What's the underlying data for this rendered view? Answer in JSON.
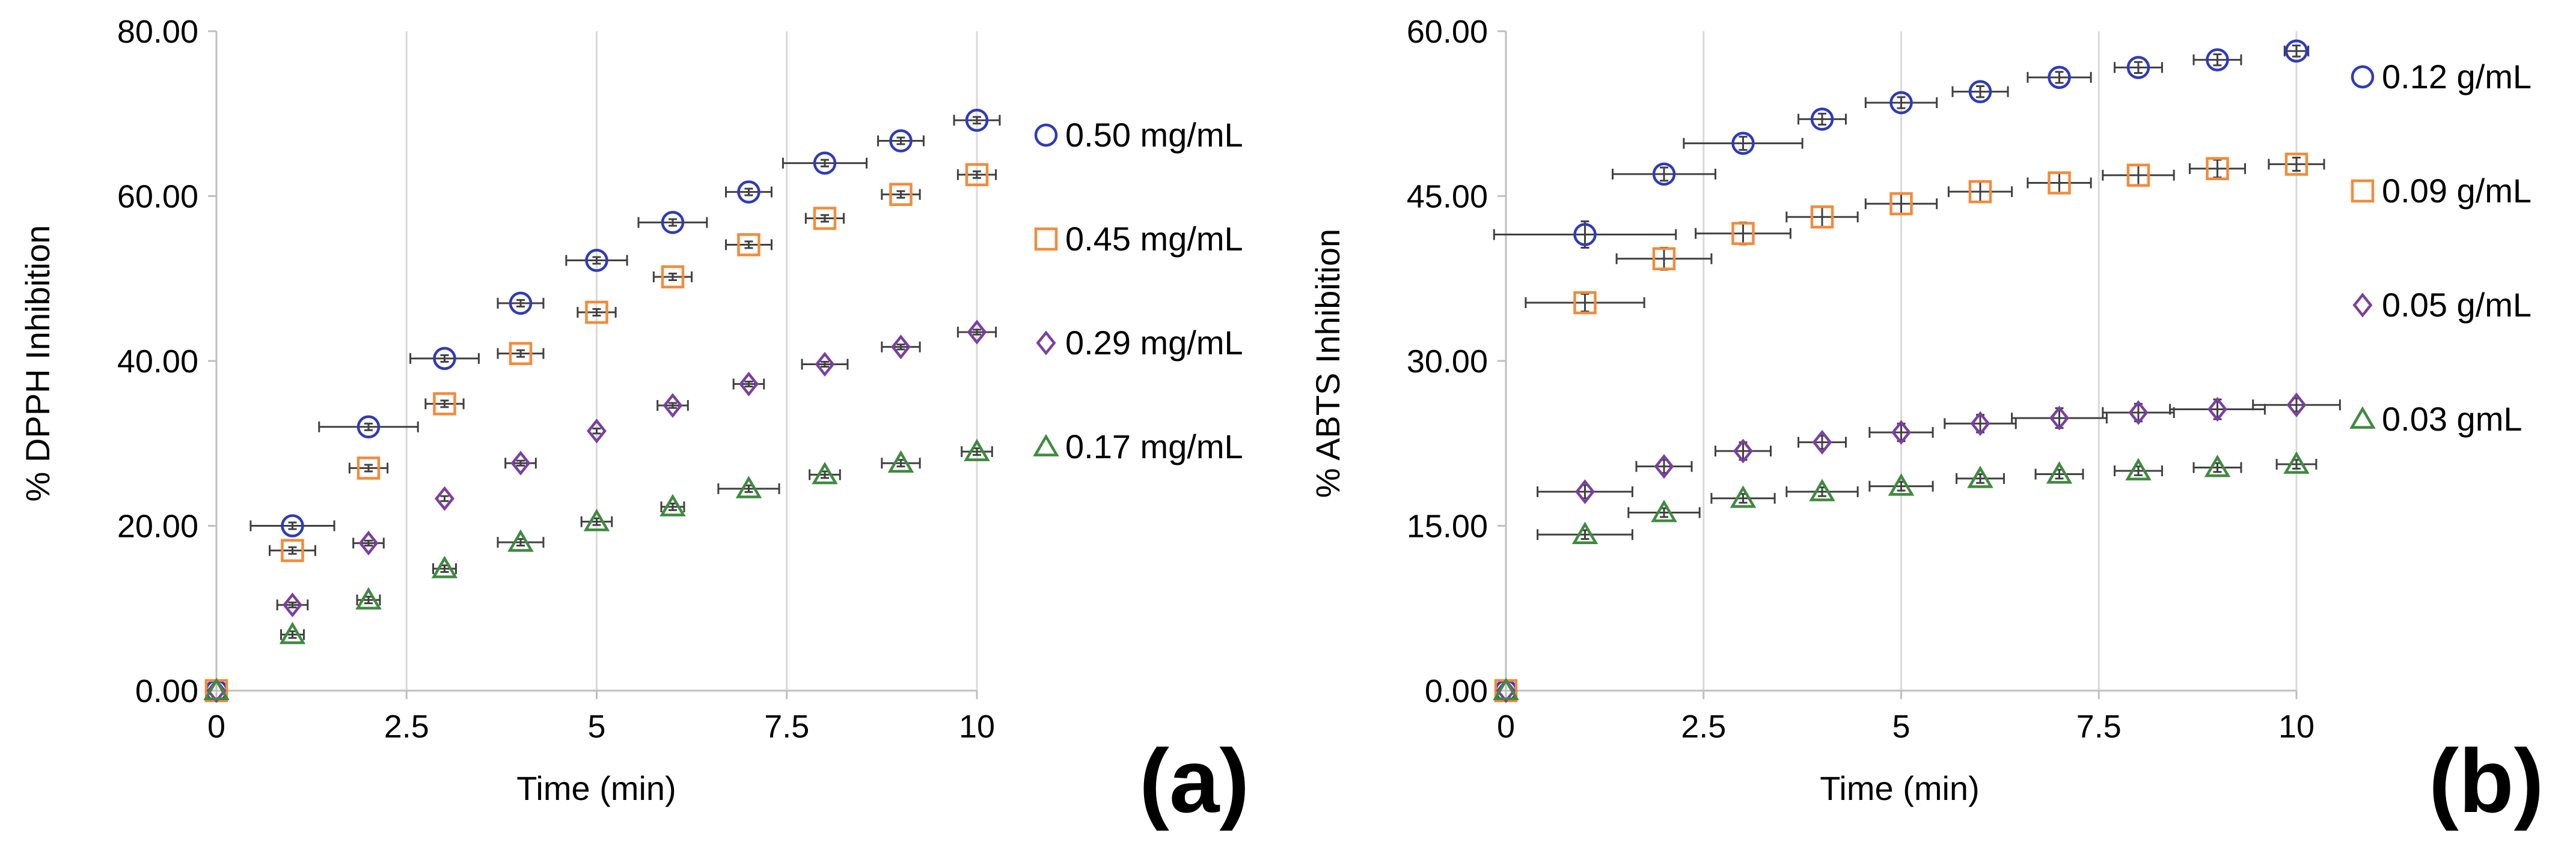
{
  "chart_data": [
    {
      "type": "scatter",
      "panel_label": "(a)",
      "xlabel": "Time (min)",
      "ylabel": "% DPPH Inhibition",
      "xlim": [
        0,
        10
      ],
      "ylim": [
        0,
        80
      ],
      "xticks": [
        0,
        2.5,
        5,
        7.5,
        10
      ],
      "xtick_labels": [
        "0",
        "2.5",
        "5",
        "7.5",
        "10"
      ],
      "yticks": [
        0,
        20,
        40,
        60,
        80
      ],
      "ytick_labels": [
        "0.00",
        "20.00",
        "40.00",
        "60.00",
        "80.00"
      ],
      "grid": "vertical",
      "legend_position": "right",
      "series": [
        {
          "name": "0.50 mg/mL",
          "marker": "circle",
          "color": "#2e3bb8",
          "x": [
            0,
            1,
            2,
            3,
            4,
            5,
            6,
            7,
            8,
            9,
            10
          ],
          "y": [
            0,
            20.0,
            32.0,
            40.3,
            47.0,
            52.2,
            56.8,
            60.5,
            64.0,
            66.7,
            69.2
          ],
          "xerr": [
            0,
            0.55,
            0.65,
            0.45,
            0.3,
            0.4,
            0.45,
            0.3,
            0.55,
            0.3,
            0.3
          ],
          "yerr": [
            0,
            0.4,
            0.4,
            0.4,
            0.4,
            0.4,
            0.4,
            0.4,
            0.4,
            0.4,
            0.4
          ]
        },
        {
          "name": "0.45 mg/mL",
          "marker": "square",
          "color": "#f28b3b",
          "x": [
            0,
            1,
            2,
            3,
            4,
            5,
            6,
            7,
            8,
            9,
            10
          ],
          "y": [
            0,
            17.0,
            27.0,
            34.8,
            40.9,
            45.9,
            50.2,
            54.1,
            57.3,
            60.2,
            62.6
          ],
          "xerr": [
            0,
            0.3,
            0.25,
            0.25,
            0.3,
            0.25,
            0.25,
            0.3,
            0.25,
            0.25,
            0.25
          ],
          "yerr": [
            0,
            0.4,
            0.4,
            0.4,
            0.4,
            0.4,
            0.4,
            0.4,
            0.4,
            0.4,
            0.4
          ]
        },
        {
          "name": "0.29 mg/mL",
          "marker": "diamond",
          "color": "#7b3fa0",
          "x": [
            0,
            1,
            2,
            3,
            4,
            5,
            6,
            7,
            8,
            9,
            10
          ],
          "y": [
            0,
            10.4,
            17.9,
            23.3,
            27.6,
            31.5,
            34.6,
            37.2,
            39.6,
            41.7,
            43.5
          ],
          "xerr": [
            0,
            0.2,
            0.2,
            0,
            0.2,
            0,
            0.2,
            0.2,
            0.3,
            0.25,
            0.25
          ],
          "yerr": [
            0,
            0.3,
            0.3,
            0.3,
            0.3,
            0.3,
            0.3,
            0.3,
            0.3,
            0.3,
            0.3
          ]
        },
        {
          "name": "0.17 mg/mL",
          "marker": "triangle",
          "color": "#3f8a3f",
          "x": [
            0,
            1,
            2,
            3,
            4,
            5,
            6,
            7,
            8,
            9,
            10
          ],
          "y": [
            0,
            6.8,
            11.0,
            14.8,
            18.0,
            20.5,
            22.3,
            24.5,
            26.2,
            27.6,
            29.0
          ],
          "xerr": [
            0,
            0.15,
            0.15,
            0.15,
            0.3,
            0.2,
            0.15,
            0.4,
            0.2,
            0.25,
            0.2
          ],
          "yerr": [
            0,
            0.4,
            0.4,
            0.4,
            0.4,
            0.4,
            0.4,
            0.4,
            0.4,
            0.4,
            0.4
          ]
        }
      ]
    },
    {
      "type": "scatter",
      "panel_label": "(b)",
      "xlabel": "Time (min)",
      "ylabel": "% ABTS Inhibition",
      "xlim": [
        0,
        10
      ],
      "ylim": [
        0,
        60
      ],
      "xticks": [
        0,
        2.5,
        5,
        7.5,
        10
      ],
      "xtick_labels": [
        "0",
        "2.5",
        "5",
        "7.5",
        "10"
      ],
      "yticks": [
        0,
        15,
        30,
        45,
        60
      ],
      "ytick_labels": [
        "0.00",
        "15.00",
        "30.00",
        "45.00",
        "60.00"
      ],
      "grid": "vertical",
      "legend_position": "right",
      "series": [
        {
          "name": "0.12 g/mL",
          "marker": "circle",
          "color": "#2e3bb8",
          "x": [
            0,
            1,
            2,
            3,
            4,
            5,
            6,
            7,
            8,
            9,
            10
          ],
          "y": [
            0,
            41.5,
            47.0,
            49.8,
            52.0,
            53.5,
            54.5,
            55.8,
            56.7,
            57.4,
            58.2
          ],
          "xerr": [
            0,
            1.15,
            0.65,
            0.75,
            0.3,
            0.45,
            0.35,
            0.4,
            0.3,
            0.3,
            0.15
          ],
          "yerr": [
            0,
            1.2,
            0.6,
            0.6,
            0.5,
            0.5,
            0.5,
            0.5,
            0.5,
            0.5,
            0.5
          ]
        },
        {
          "name": "0.09 g/mL",
          "marker": "square",
          "color": "#f28b3b",
          "x": [
            0,
            1,
            2,
            3,
            4,
            5,
            6,
            7,
            8,
            9,
            10
          ],
          "y": [
            0,
            35.3,
            39.3,
            41.6,
            43.1,
            44.3,
            45.4,
            46.2,
            46.9,
            47.5,
            47.9
          ],
          "xerr": [
            0,
            0.75,
            0.6,
            0.6,
            0.45,
            0.45,
            0.4,
            0.4,
            0.45,
            0.35,
            0.35
          ],
          "yerr": [
            0,
            0.8,
            1.0,
            1.0,
            0.9,
            0.9,
            0.9,
            0.9,
            0.9,
            0.8,
            0.6
          ]
        },
        {
          "name": "0.05 g/mL",
          "marker": "diamond",
          "color": "#7b3fa0",
          "x": [
            0,
            1,
            2,
            3,
            4,
            5,
            6,
            7,
            8,
            9,
            10
          ],
          "y": [
            0,
            18.1,
            20.4,
            21.8,
            22.6,
            23.5,
            24.3,
            24.8,
            25.3,
            25.6,
            26.0
          ],
          "xerr": [
            0,
            0.6,
            0.35,
            0.35,
            0.3,
            0.4,
            0.45,
            0.6,
            0.45,
            0.6,
            0.55
          ],
          "yerr": [
            0,
            0.6,
            0.6,
            0.8,
            0.6,
            0.8,
            0.8,
            0.9,
            0.8,
            0.9,
            0.6
          ]
        },
        {
          "name": "0.03 gmL",
          "marker": "triangle",
          "color": "#3f8a3f",
          "x": [
            0,
            1,
            2,
            3,
            4,
            5,
            6,
            7,
            8,
            9,
            10
          ],
          "y": [
            0,
            14.2,
            16.2,
            17.5,
            18.1,
            18.6,
            19.3,
            19.7,
            20.0,
            20.3,
            20.6
          ],
          "xerr": [
            0,
            0.6,
            0.45,
            0.4,
            0.45,
            0.4,
            0.3,
            0.3,
            0.3,
            0.3,
            0.25
          ],
          "yerr": [
            0,
            0.4,
            0.4,
            0.4,
            0.4,
            0.4,
            0.4,
            0.4,
            0.4,
            0.4,
            0.4
          ]
        }
      ]
    }
  ]
}
